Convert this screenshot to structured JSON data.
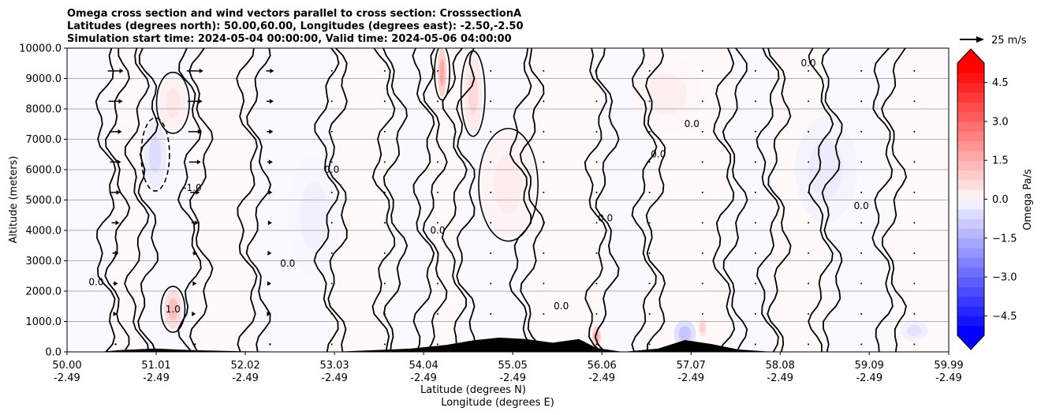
{
  "chart_data": {
    "type": "contour",
    "title_lines": [
      "Omega cross section and wind vectors parallel to cross section: CrosssectionA",
      "Latitudes (degrees north): 50.00,60.00, Longitudes (degrees east): -2.50,-2.50",
      "Simulation start time: 2024-05-04 00:00:00, Valid time: 2024-05-06 04:00:00"
    ],
    "xlabel_lat": "Latitude (degrees N)",
    "xlabel_lon": "Longitude (degrees E)",
    "ylabel": "Altitude (meters)",
    "xlim": [
      50.0,
      59.99
    ],
    "ylim": [
      0,
      10000
    ],
    "x_ticks": [
      {
        "lat": "50.00",
        "lon": "-2.49",
        "v": 50.0
      },
      {
        "lat": "51.01",
        "lon": "-2.49",
        "v": 51.01
      },
      {
        "lat": "52.02",
        "lon": "-2.49",
        "v": 52.02
      },
      {
        "lat": "53.03",
        "lon": "-2.49",
        "v": 53.03
      },
      {
        "lat": "54.04",
        "lon": "-2.49",
        "v": 54.04
      },
      {
        "lat": "55.05",
        "lon": "-2.49",
        "v": 55.05
      },
      {
        "lat": "56.06",
        "lon": "-2.49",
        "v": 56.06
      },
      {
        "lat": "57.07",
        "lon": "-2.49",
        "v": 57.07
      },
      {
        "lat": "58.08",
        "lon": "-2.49",
        "v": 58.08
      },
      {
        "lat": "59.09",
        "lon": "-2.49",
        "v": 59.09
      },
      {
        "lat": "59.99",
        "lon": "-2.49",
        "v": 59.99
      }
    ],
    "y_ticks": [
      {
        "label": "0.0",
        "v": 0
      },
      {
        "label": "1000.0",
        "v": 1000
      },
      {
        "label": "2000.0",
        "v": 2000
      },
      {
        "label": "3000.0",
        "v": 3000
      },
      {
        "label": "4000.0",
        "v": 4000
      },
      {
        "label": "5000.0",
        "v": 5000
      },
      {
        "label": "6000.0",
        "v": 6000
      },
      {
        "label": "7000.0",
        "v": 7000
      },
      {
        "label": "8000.0",
        "v": 8000
      },
      {
        "label": "9000.0",
        "v": 9000
      },
      {
        "label": "10000.0",
        "v": 10000
      }
    ],
    "grid": "horizontal",
    "colorbar": {
      "label": "Omega Pa/s",
      "range": [
        -5.25,
        5.25
      ],
      "step": 0.375,
      "ticks": [
        {
          "label": "4.5",
          "v": 4.5
        },
        {
          "label": "3.0",
          "v": 3.0
        },
        {
          "label": "1.5",
          "v": 1.5
        },
        {
          "label": "0.0",
          "v": 0.0
        },
        {
          "label": "−1.5",
          "v": -1.5
        },
        {
          "label": "−3.0",
          "v": -3.0
        },
        {
          "label": "−4.5",
          "v": -4.5
        }
      ],
      "colors": {
        "positive": "#ff0000",
        "negative": "#0000ff",
        "neutral": "#ffffff"
      }
    },
    "wind_key": {
      "label": "25 m/s",
      "speed": 25
    },
    "contour_labels": [
      "0.0",
      "-1.0",
      "1.0"
    ],
    "wind_columns": [
      {
        "lat": 50.55,
        "speeds": [
          0,
          4,
          6,
          8,
          10,
          12,
          14,
          16,
          18,
          20
        ]
      },
      {
        "lat": 51.45,
        "speeds": [
          0,
          2,
          4,
          6,
          9,
          12,
          15,
          17,
          19,
          21
        ]
      },
      {
        "lat": 52.3,
        "speeds": [
          0,
          2,
          3,
          4,
          5,
          6,
          7,
          8,
          9,
          10
        ]
      }
    ],
    "terrain": [
      [
        50.0,
        0
      ],
      [
        50.4,
        10
      ],
      [
        50.6,
        60
      ],
      [
        51.0,
        110
      ],
      [
        51.4,
        60
      ],
      [
        52.0,
        20
      ],
      [
        53.0,
        0
      ],
      [
        53.9,
        110
      ],
      [
        54.3,
        230
      ],
      [
        54.6,
        380
      ],
      [
        54.9,
        470
      ],
      [
        55.2,
        420
      ],
      [
        55.5,
        300
      ],
      [
        55.8,
        420
      ],
      [
        56.0,
        130
      ],
      [
        56.3,
        0
      ],
      [
        56.7,
        110
      ],
      [
        57.0,
        390
      ],
      [
        57.3,
        260
      ],
      [
        57.6,
        80
      ],
      [
        58.0,
        0
      ],
      [
        59.99,
        0
      ]
    ],
    "omega_features": [
      {
        "lat": 51.2,
        "alt": 1400,
        "value": 1.3,
        "w": 0.2,
        "h": 1300
      },
      {
        "lat": 51.2,
        "alt": 8200,
        "value": 0.5,
        "w": 0.3,
        "h": 1800
      },
      {
        "lat": 51.0,
        "alt": 6500,
        "value": -0.7,
        "w": 0.25,
        "h": 2200
      },
      {
        "lat": 54.25,
        "alt": 9200,
        "value": 1.8,
        "w": 0.1,
        "h": 1600
      },
      {
        "lat": 54.6,
        "alt": 8500,
        "value": 0.8,
        "w": 0.2,
        "h": 2600
      },
      {
        "lat": 55.0,
        "alt": 5500,
        "value": 0.4,
        "w": 0.6,
        "h": 3500
      },
      {
        "lat": 56.0,
        "alt": 500,
        "value": 1.8,
        "w": 0.1,
        "h": 700
      },
      {
        "lat": 57.0,
        "alt": 600,
        "value": -1.2,
        "w": 0.25,
        "h": 900
      },
      {
        "lat": 57.2,
        "alt": 800,
        "value": 1.0,
        "w": 0.1,
        "h": 600
      },
      {
        "lat": 59.6,
        "alt": 700,
        "value": -0.6,
        "w": 0.3,
        "h": 700
      },
      {
        "lat": 58.6,
        "alt": 6000,
        "value": -0.4,
        "w": 0.7,
        "h": 3500
      },
      {
        "lat": 56.8,
        "alt": 8500,
        "value": 0.3,
        "w": 0.8,
        "h": 2500
      },
      {
        "lat": 52.8,
        "alt": 4500,
        "value": -0.3,
        "w": 0.6,
        "h": 4000
      }
    ]
  }
}
